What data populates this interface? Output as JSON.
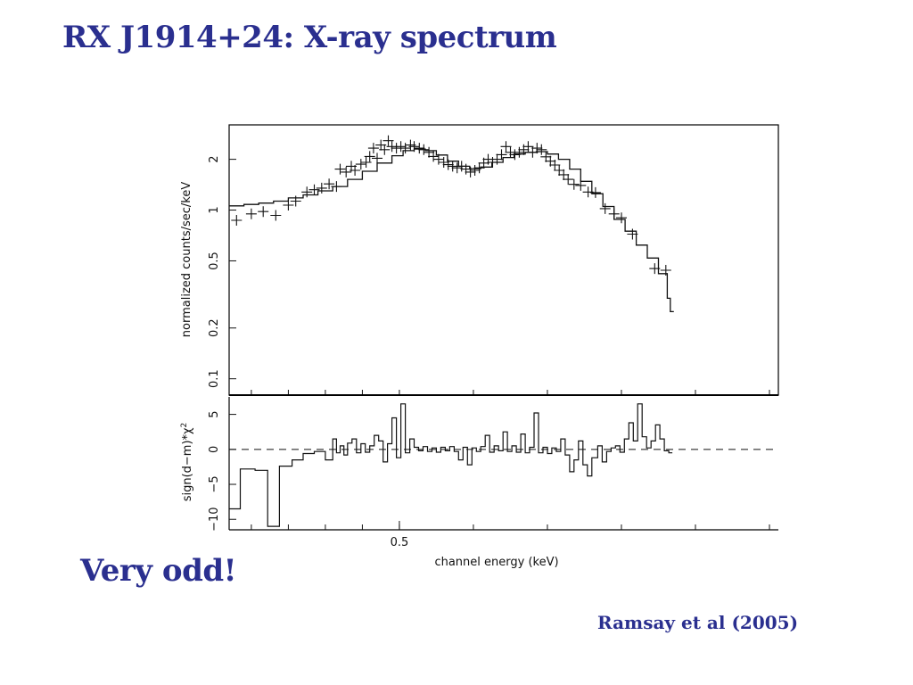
{
  "slide": {
    "title": "RX J1914+24: X-ray spectrum",
    "note": "Very odd!",
    "credit": "Ramsay et al (2005)"
  },
  "colors": {
    "heading": "#2a2f8f",
    "axis": "#000000",
    "plot": "#111111"
  },
  "chart_data": [
    {
      "type": "line",
      "panel": "spectrum",
      "ylabel": "normalized counts/sec/keV",
      "yscale": "log",
      "ylim": [
        0.08,
        3.2
      ],
      "xlim": [
        0.27,
        1.0
      ],
      "yticks": [
        0.1,
        0.2,
        0.5,
        1,
        2
      ],
      "ytick_labels": [
        "0.1",
        "0.2",
        "0.5",
        "1",
        "2"
      ],
      "grid": false,
      "series": [
        {
          "style": "crosses",
          "points": [
            [
              0.28,
              0.87
            ],
            [
              0.3,
              0.95
            ],
            [
              0.316,
              0.98
            ],
            [
              0.333,
              0.93
            ],
            [
              0.35,
              1.07
            ],
            [
              0.36,
              1.13
            ],
            [
              0.375,
              1.28
            ],
            [
              0.385,
              1.32
            ],
            [
              0.395,
              1.35
            ],
            [
              0.405,
              1.43
            ],
            [
              0.415,
              1.38
            ],
            [
              0.42,
              1.75
            ],
            [
              0.428,
              1.68
            ],
            [
              0.435,
              1.82
            ],
            [
              0.44,
              1.72
            ],
            [
              0.448,
              1.87
            ],
            [
              0.455,
              1.92
            ],
            [
              0.46,
              2.08
            ],
            [
              0.465,
              2.33
            ],
            [
              0.47,
              2.03
            ],
            [
              0.475,
              2.43
            ],
            [
              0.48,
              2.28
            ],
            [
              0.485,
              2.58
            ],
            [
              0.49,
              2.38
            ],
            [
              0.496,
              2.33
            ],
            [
              0.502,
              2.38
            ],
            [
              0.508,
              2.33
            ],
            [
              0.515,
              2.43
            ],
            [
              0.52,
              2.38
            ],
            [
              0.527,
              2.33
            ],
            [
              0.533,
              2.28
            ],
            [
              0.54,
              2.2
            ],
            [
              0.546,
              2.08
            ],
            [
              0.553,
              2.0
            ],
            [
              0.56,
              1.92
            ],
            [
              0.566,
              1.86
            ],
            [
              0.572,
              1.82
            ],
            [
              0.578,
              1.78
            ],
            [
              0.584,
              1.82
            ],
            [
              0.59,
              1.75
            ],
            [
              0.596,
              1.68
            ],
            [
              0.602,
              1.72
            ],
            [
              0.608,
              1.78
            ],
            [
              0.614,
              1.9
            ],
            [
              0.62,
              2.0
            ],
            [
              0.626,
              1.92
            ],
            [
              0.632,
              2.0
            ],
            [
              0.638,
              2.13
            ],
            [
              0.644,
              2.38
            ],
            [
              0.65,
              2.2
            ],
            [
              0.656,
              2.13
            ],
            [
              0.662,
              2.2
            ],
            [
              0.668,
              2.28
            ],
            [
              0.674,
              2.38
            ],
            [
              0.68,
              2.2
            ],
            [
              0.686,
              2.33
            ],
            [
              0.692,
              2.28
            ],
            [
              0.698,
              2.07
            ],
            [
              0.704,
              1.95
            ],
            [
              0.71,
              1.85
            ],
            [
              0.716,
              1.72
            ],
            [
              0.722,
              1.62
            ],
            [
              0.728,
              1.52
            ],
            [
              0.736,
              1.42
            ],
            [
              0.745,
              1.4
            ],
            [
              0.755,
              1.28
            ],
            [
              0.765,
              1.27
            ],
            [
              0.778,
              1.02
            ],
            [
              0.79,
              0.95
            ],
            [
              0.8,
              0.9
            ],
            [
              0.815,
              0.72
            ],
            [
              0.845,
              0.45
            ],
            [
              0.86,
              0.44
            ]
          ]
        },
        {
          "style": "step",
          "points": [
            [
              0.27,
              1.06
            ],
            [
              0.29,
              1.08
            ],
            [
              0.31,
              1.1
            ],
            [
              0.33,
              1.13
            ],
            [
              0.35,
              1.18
            ],
            [
              0.37,
              1.23
            ],
            [
              0.39,
              1.3
            ],
            [
              0.41,
              1.38
            ],
            [
              0.43,
              1.52
            ],
            [
              0.45,
              1.7
            ],
            [
              0.47,
              1.9
            ],
            [
              0.49,
              2.1
            ],
            [
              0.505,
              2.25
            ],
            [
              0.52,
              2.3
            ],
            [
              0.535,
              2.25
            ],
            [
              0.55,
              2.12
            ],
            [
              0.565,
              1.95
            ],
            [
              0.58,
              1.82
            ],
            [
              0.595,
              1.76
            ],
            [
              0.61,
              1.8
            ],
            [
              0.625,
              1.92
            ],
            [
              0.64,
              2.05
            ],
            [
              0.655,
              2.15
            ],
            [
              0.67,
              2.2
            ],
            [
              0.685,
              2.22
            ],
            [
              0.7,
              2.15
            ],
            [
              0.715,
              2.0
            ],
            [
              0.73,
              1.75
            ],
            [
              0.745,
              1.48
            ],
            [
              0.76,
              1.25
            ],
            [
              0.775,
              1.05
            ],
            [
              0.79,
              0.88
            ],
            [
              0.805,
              0.75
            ],
            [
              0.82,
              0.62
            ],
            [
              0.835,
              0.52
            ],
            [
              0.85,
              0.42
            ],
            [
              0.862,
              0.3
            ],
            [
              0.866,
              0.25
            ]
          ]
        }
      ]
    },
    {
      "type": "line",
      "panel": "residuals",
      "ylabel": "sign(d−m)*χ",
      "ylabel_superscript": "2",
      "xlabel": "channel energy (keV)",
      "ylim": [
        -11.5,
        7.5
      ],
      "xlim": [
        0.27,
        1.0
      ],
      "yticks": [
        -10,
        -5,
        0,
        5
      ],
      "ytick_labels": [
        "−10",
        "−5",
        "0",
        "5"
      ],
      "xtick_labels": [
        {
          "value": 0.5,
          "label": "0.5"
        }
      ],
      "reference_line": 0,
      "series": [
        {
          "style": "step",
          "points": [
            [
              0.27,
              -8.5
            ],
            [
              0.285,
              -2.8
            ],
            [
              0.305,
              -3.0
            ],
            [
              0.322,
              -11
            ],
            [
              0.338,
              -2.4
            ],
            [
              0.355,
              -1.5
            ],
            [
              0.37,
              -0.6
            ],
            [
              0.385,
              -0.3
            ],
            [
              0.4,
              -1.5
            ],
            [
              0.41,
              1.5
            ],
            [
              0.415,
              -0.5
            ],
            [
              0.42,
              0.5
            ],
            [
              0.425,
              -0.8
            ],
            [
              0.43,
              0.9
            ],
            [
              0.436,
              1.5
            ],
            [
              0.442,
              -0.5
            ],
            [
              0.448,
              0.8
            ],
            [
              0.454,
              -0.4
            ],
            [
              0.46,
              0.5
            ],
            [
              0.466,
              2
            ],
            [
              0.472,
              1.2
            ],
            [
              0.478,
              -1.8
            ],
            [
              0.484,
              0.8
            ],
            [
              0.49,
              4.5
            ],
            [
              0.496,
              -1.2
            ],
            [
              0.502,
              6.5
            ],
            [
              0.508,
              -0.5
            ],
            [
              0.514,
              1.5
            ],
            [
              0.52,
              0.3
            ],
            [
              0.526,
              -0.2
            ],
            [
              0.532,
              0.4
            ],
            [
              0.538,
              -0.3
            ],
            [
              0.544,
              0.2
            ],
            [
              0.55,
              -0.4
            ],
            [
              0.556,
              0.3
            ],
            [
              0.562,
              -0.2
            ],
            [
              0.568,
              0.4
            ],
            [
              0.574,
              -0.3
            ],
            [
              0.58,
              -1.5
            ],
            [
              0.586,
              0.3
            ],
            [
              0.592,
              -2.2
            ],
            [
              0.598,
              0.2
            ],
            [
              0.604,
              -0.3
            ],
            [
              0.61,
              0.4
            ],
            [
              0.616,
              2
            ],
            [
              0.622,
              -0.4
            ],
            [
              0.628,
              0.5
            ],
            [
              0.634,
              -0.2
            ],
            [
              0.64,
              2.5
            ],
            [
              0.646,
              -0.3
            ],
            [
              0.652,
              0.5
            ],
            [
              0.658,
              -0.4
            ],
            [
              0.664,
              2.2
            ],
            [
              0.67,
              -0.5
            ],
            [
              0.676,
              0.3
            ],
            [
              0.682,
              5.2
            ],
            [
              0.688,
              -0.5
            ],
            [
              0.694,
              0.3
            ],
            [
              0.7,
              -0.6
            ],
            [
              0.706,
              0.2
            ],
            [
              0.712,
              -0.3
            ],
            [
              0.718,
              1.5
            ],
            [
              0.724,
              -0.8
            ],
            [
              0.73,
              -3.2
            ],
            [
              0.736,
              -1.5
            ],
            [
              0.742,
              1.2
            ],
            [
              0.748,
              -2.2
            ],
            [
              0.754,
              -3.8
            ],
            [
              0.76,
              -1.2
            ],
            [
              0.768,
              0.5
            ],
            [
              0.774,
              -1.8
            ],
            [
              0.78,
              -0.3
            ],
            [
              0.786,
              0.2
            ],
            [
              0.792,
              0.5
            ],
            [
              0.798,
              -0.4
            ],
            [
              0.804,
              1.5
            ],
            [
              0.81,
              3.8
            ],
            [
              0.816,
              1.2
            ],
            [
              0.822,
              6.5
            ],
            [
              0.828,
              1.8
            ],
            [
              0.834,
              0.2
            ],
            [
              0.84,
              1.2
            ],
            [
              0.846,
              3.5
            ],
            [
              0.852,
              1.5
            ],
            [
              0.858,
              -0.2
            ],
            [
              0.864,
              -0.5
            ]
          ]
        }
      ]
    }
  ]
}
